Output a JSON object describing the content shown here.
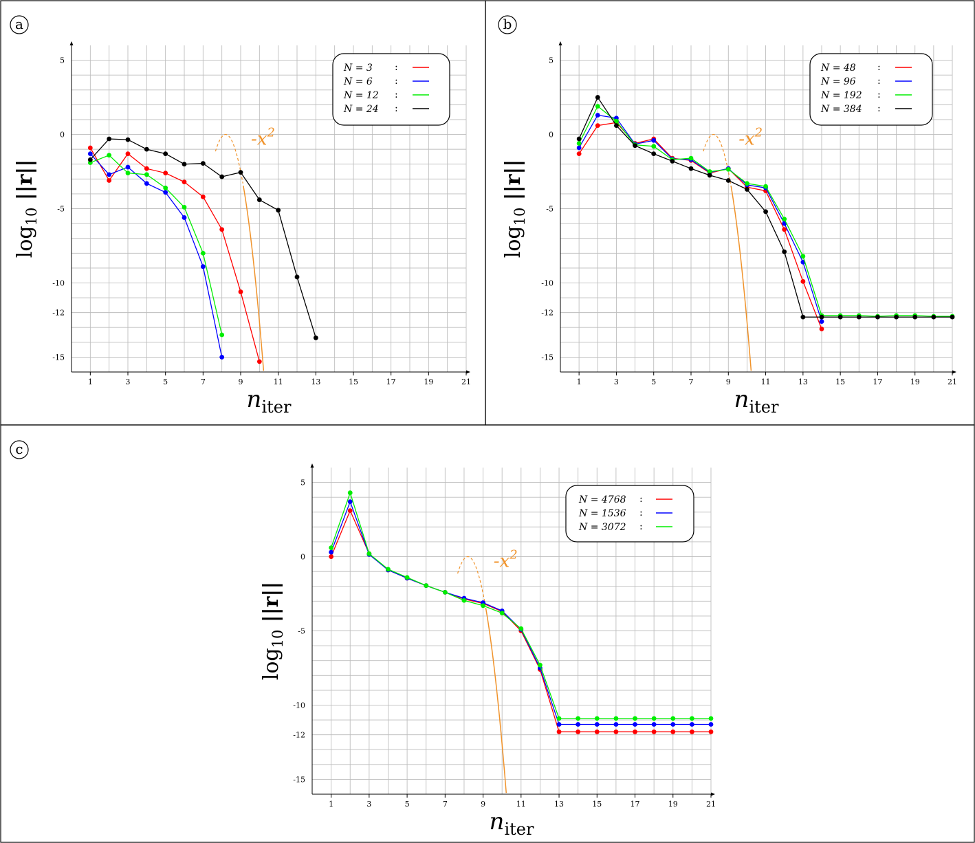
{
  "figure": {
    "background": "#ffffff"
  },
  "chart_data": [
    {
      "type": "line",
      "panel_label": "a",
      "xlabel": "n_iter",
      "ylabel": "log10 ||r||",
      "xlim": [
        0,
        21
      ],
      "ylim": [
        -16,
        6
      ],
      "x_ticks": [
        1,
        3,
        5,
        7,
        9,
        11,
        13,
        15,
        17,
        19,
        21
      ],
      "y_ticks": [
        5,
        0,
        -5,
        -10,
        -12,
        -15
      ],
      "grid": true,
      "legend_position": "top-right",
      "series": [
        {
          "name": "N = 3",
          "color": "#ff0000",
          "x": [
            1,
            2,
            3,
            4,
            5,
            6,
            7,
            8,
            9,
            10
          ],
          "y": [
            -0.9,
            -3.1,
            -1.3,
            -2.3,
            -2.6,
            -3.2,
            -4.2,
            -6.4,
            -10.6,
            -15.3
          ]
        },
        {
          "name": "N = 6",
          "color": "#0000ff",
          "x": [
            1,
            2,
            3,
            4,
            5,
            6,
            7,
            8
          ],
          "y": [
            -1.3,
            -2.7,
            -2.2,
            -3.3,
            -3.9,
            -5.6,
            -8.9,
            -15.0
          ]
        },
        {
          "name": "N = 12",
          "color": "#00ee00",
          "x": [
            1,
            2,
            3,
            4,
            5,
            6,
            7,
            8
          ],
          "y": [
            -1.9,
            -1.4,
            -2.6,
            -2.7,
            -3.6,
            -4.9,
            -8.0,
            -13.5
          ]
        },
        {
          "name": "N = 24",
          "color": "#000000",
          "x": [
            1,
            2,
            3,
            4,
            5,
            6,
            7,
            8,
            9,
            10,
            11,
            12,
            13
          ],
          "y": [
            -1.7,
            -0.3,
            -0.35,
            -1.0,
            -1.3,
            -2.0,
            -1.95,
            -2.85,
            -2.55,
            -4.4,
            -5.1,
            -9.6,
            -13.7
          ]
        }
      ],
      "annotation": {
        "text": "-x",
        "superscript": "2",
        "color": "#f0932b"
      },
      "reference_curve": {
        "color": "#f0932b",
        "vertex_x": 8.2,
        "vertex_y": 0,
        "a": 3.9,
        "solid_from_y": -3.4
      }
    },
    {
      "type": "line",
      "panel_label": "b",
      "xlabel": "n_iter",
      "ylabel": "log10 ||r||",
      "xlim": [
        0,
        21
      ],
      "ylim": [
        -16,
        6
      ],
      "x_ticks": [
        1,
        3,
        5,
        7,
        9,
        11,
        13,
        15,
        17,
        19,
        21
      ],
      "y_ticks": [
        5,
        0,
        -5,
        -10,
        -12,
        -15
      ],
      "grid": true,
      "legend_position": "top-right",
      "series": [
        {
          "name": "N = 48",
          "color": "#ff0000",
          "x": [
            1,
            2,
            3,
            4,
            5,
            6,
            7,
            8,
            9,
            10,
            11,
            12,
            13,
            14
          ],
          "y": [
            -1.3,
            0.6,
            0.8,
            -0.6,
            -0.3,
            -1.6,
            -1.75,
            -2.6,
            -2.3,
            -3.55,
            -3.8,
            -6.4,
            -9.9,
            -13.1
          ]
        },
        {
          "name": "N = 96",
          "color": "#0000ff",
          "x": [
            1,
            2,
            3,
            4,
            5,
            6,
            7,
            8,
            9,
            10,
            11,
            12,
            13,
            14
          ],
          "y": [
            -0.9,
            1.3,
            1.1,
            -0.65,
            -0.4,
            -1.65,
            -1.7,
            -2.55,
            -2.3,
            -3.4,
            -3.6,
            -6.0,
            -8.6,
            -12.6
          ]
        },
        {
          "name": "N = 192",
          "color": "#00ee00",
          "x": [
            1,
            2,
            3,
            4,
            5,
            6,
            7,
            8,
            9,
            10,
            11,
            12,
            13,
            14,
            15,
            16,
            17,
            18,
            19,
            20,
            21
          ],
          "y": [
            -0.6,
            1.9,
            0.9,
            -0.7,
            -0.8,
            -1.7,
            -1.6,
            -2.5,
            -2.35,
            -3.3,
            -3.5,
            -5.7,
            -8.2,
            -12.2,
            -12.2,
            -12.2,
            -12.25,
            -12.2,
            -12.2,
            -12.25,
            -12.25
          ]
        },
        {
          "name": "N = 384",
          "color": "#000000",
          "x": [
            1,
            2,
            3,
            4,
            5,
            6,
            7,
            8,
            9,
            10,
            11,
            12,
            13,
            14,
            15,
            16,
            17,
            18,
            19,
            20,
            21
          ],
          "y": [
            -0.3,
            2.5,
            0.6,
            -0.75,
            -1.3,
            -1.8,
            -2.3,
            -2.75,
            -3.1,
            -3.7,
            -5.2,
            -7.9,
            -12.3,
            -12.3,
            -12.3,
            -12.3,
            -12.3,
            -12.3,
            -12.3,
            -12.3,
            -12.3
          ]
        }
      ],
      "annotation": {
        "text": "-x",
        "superscript": "2",
        "color": "#f0932b"
      },
      "reference_curve": {
        "color": "#f0932b",
        "vertex_x": 8.2,
        "vertex_y": 0,
        "a": 3.9,
        "solid_from_y": -3.4
      }
    },
    {
      "type": "line",
      "panel_label": "c",
      "xlabel": "n_iter",
      "ylabel": "log10 ||r||",
      "xlim": [
        0,
        21
      ],
      "ylim": [
        -16,
        6
      ],
      "x_ticks": [
        1,
        3,
        5,
        7,
        9,
        11,
        13,
        15,
        17,
        19,
        21
      ],
      "y_ticks": [
        5,
        0,
        -5,
        -10,
        -12,
        -15
      ],
      "grid": true,
      "legend_position": "top-right",
      "series": [
        {
          "name": "N = 4768",
          "color": "#ff0000",
          "x": [
            1,
            2,
            3,
            4,
            5,
            6,
            7,
            8,
            9,
            10,
            11,
            12,
            13,
            14,
            15,
            16,
            17,
            18,
            19,
            20,
            21
          ],
          "y": [
            0.0,
            3.1,
            0.2,
            -0.9,
            -1.45,
            -1.95,
            -2.4,
            -2.85,
            -3.15,
            -3.7,
            -5.0,
            -7.6,
            -11.8,
            -11.8,
            -11.8,
            -11.8,
            -11.8,
            -11.8,
            -11.8,
            -11.8,
            -11.8
          ]
        },
        {
          "name": "N = 1536",
          "color": "#0000ff",
          "x": [
            1,
            2,
            3,
            4,
            5,
            6,
            7,
            8,
            9,
            10,
            11,
            12,
            13,
            14,
            15,
            16,
            17,
            18,
            19,
            20,
            21
          ],
          "y": [
            0.3,
            3.7,
            0.15,
            -0.9,
            -1.45,
            -1.95,
            -2.4,
            -2.8,
            -3.1,
            -3.65,
            -4.9,
            -7.5,
            -11.3,
            -11.3,
            -11.3,
            -11.3,
            -11.3,
            -11.3,
            -11.3,
            -11.3,
            -11.3
          ]
        },
        {
          "name": "N = 3072",
          "color": "#00ee00",
          "x": [
            1,
            2,
            3,
            4,
            5,
            6,
            7,
            8,
            9,
            10,
            11,
            12,
            13,
            14,
            15,
            16,
            17,
            18,
            19,
            20,
            21
          ],
          "y": [
            0.6,
            4.3,
            0.2,
            -0.85,
            -1.4,
            -1.95,
            -2.4,
            -2.95,
            -3.3,
            -3.8,
            -4.85,
            -7.3,
            -10.9,
            -10.9,
            -10.9,
            -10.9,
            -10.9,
            -10.9,
            -10.9,
            -10.9,
            -10.9
          ]
        }
      ],
      "annotation": {
        "text": "-x",
        "superscript": "2",
        "color": "#f0932b"
      },
      "reference_curve": {
        "color": "#f0932b",
        "vertex_x": 8.2,
        "vertex_y": 0,
        "a": 3.9,
        "solid_from_y": -3.4
      }
    }
  ]
}
